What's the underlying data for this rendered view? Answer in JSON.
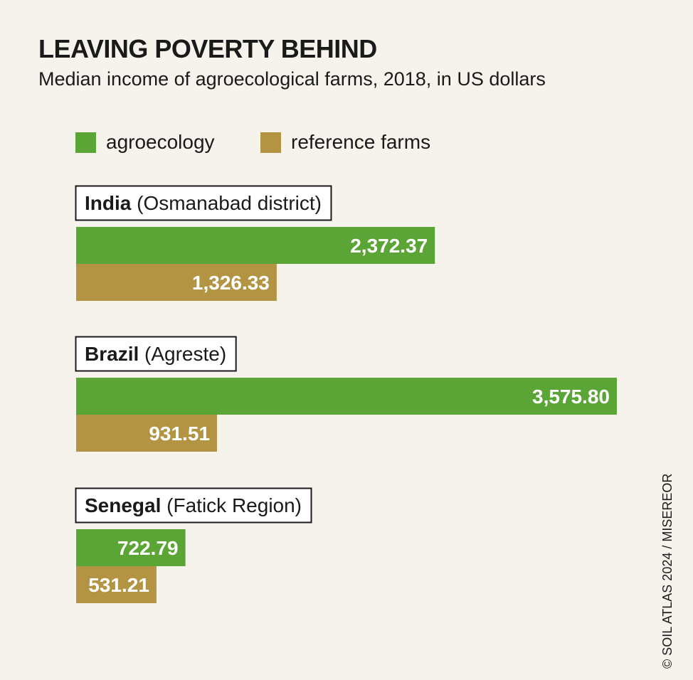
{
  "colors": {
    "agroecology": "#5aa535",
    "reference": "#b39442",
    "background": "#f6f3ec",
    "text": "#1a1a1a",
    "label_on_bar": "#ffffff"
  },
  "legend": [
    {
      "label": "agroecology",
      "color": "#5aa535"
    },
    {
      "label": "reference farms",
      "color": "#b39442"
    }
  ],
  "credit": "© SOIL ATLAS 2024 / MISEREOR",
  "chart_data": {
    "type": "bar",
    "orientation": "horizontal",
    "title": "LEAVING POVERTY BEHIND",
    "subtitle": "Median income of agroecological farms, 2018, in US dollars",
    "groups": [
      {
        "country": "India",
        "region": "(Osmanabad district)",
        "agroecology": 2372.37,
        "reference": 1326.33,
        "agroecology_label": "2,372.37",
        "reference_label": "1,326.33"
      },
      {
        "country": "Brazil",
        "region": "(Agreste)",
        "agroecology": 3575.8,
        "reference": 931.51,
        "agroecology_label": "3,575.80",
        "reference_label": "931.51"
      },
      {
        "country": "Senegal",
        "region": "(Fatick Region)",
        "agroecology": 722.79,
        "reference": 531.21,
        "agroecology_label": "722.79",
        "reference_label": "531.21"
      }
    ],
    "series": [
      {
        "name": "agroecology",
        "key": "agroecology"
      },
      {
        "name": "reference farms",
        "key": "reference"
      }
    ],
    "xlim": [
      0,
      3575.8
    ],
    "grid": false,
    "legend_position": "top-left"
  }
}
